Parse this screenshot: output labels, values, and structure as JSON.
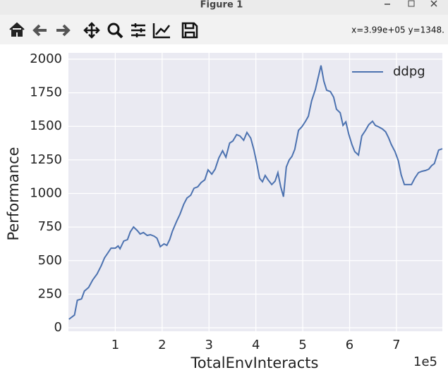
{
  "window": {
    "title": "Figure 1"
  },
  "status": "x=3.99e+05 y=1348.",
  "chart_data": {
    "type": "line",
    "xlabel": "TotalEnvInteracts",
    "ylabel": "Performance",
    "x_offset_label": "1e5",
    "x": [
      1000,
      13000,
      19000,
      28000,
      34000,
      43000,
      52000,
      61000,
      70000,
      77000,
      85000,
      91000,
      100000,
      106000,
      110000,
      118000,
      126000,
      132000,
      139000,
      147000,
      153000,
      160000,
      168000,
      175000,
      183000,
      189000,
      196000,
      204000,
      210000,
      216000,
      222000,
      231000,
      238000,
      246000,
      253000,
      261000,
      268000,
      276000,
      283000,
      291000,
      298000,
      306000,
      313000,
      321000,
      329000,
      336000,
      344000,
      351000,
      359000,
      366000,
      374000,
      381000,
      389000,
      396000,
      402000,
      408000,
      414000,
      420000,
      426000,
      434000,
      441000,
      447000,
      453000,
      459000,
      465000,
      471000,
      477000,
      483000,
      491000,
      498000,
      506000,
      512000,
      519000,
      527000,
      533000,
      539000,
      545000,
      551000,
      559000,
      566000,
      572000,
      580000,
      586000,
      592000,
      598000,
      605000,
      611000,
      619000,
      626000,
      634000,
      641000,
      649000,
      655000,
      662000,
      670000,
      677000,
      683000,
      689000,
      697000,
      704000,
      710000,
      717000,
      724000,
      732000,
      739000,
      747000,
      754000,
      762000,
      769000,
      775000,
      781000,
      790000,
      798000
    ],
    "series": [
      {
        "name": "ddpg",
        "color": "#4c72b0",
        "values": [
          63,
          95,
          205,
          215,
          273,
          300,
          357,
          400,
          462,
          520,
          562,
          593,
          593,
          609,
          588,
          646,
          656,
          714,
          750,
          724,
          698,
          709,
          688,
          693,
          682,
          667,
          604,
          625,
          614,
          656,
          719,
          793,
          845,
          919,
          966,
          987,
          1039,
          1050,
          1081,
          1102,
          1176,
          1144,
          1181,
          1265,
          1318,
          1270,
          1375,
          1391,
          1438,
          1428,
          1396,
          1454,
          1412,
          1323,
          1223,
          1113,
          1087,
          1134,
          1102,
          1066,
          1092,
          1155,
          1050,
          976,
          1197,
          1249,
          1276,
          1328,
          1470,
          1496,
          1538,
          1575,
          1690,
          1774,
          1864,
          1953,
          1837,
          1769,
          1759,
          1717,
          1627,
          1601,
          1507,
          1533,
          1444,
          1365,
          1312,
          1286,
          1428,
          1470,
          1512,
          1538,
          1507,
          1496,
          1480,
          1459,
          1417,
          1365,
          1312,
          1244,
          1139,
          1066,
          1066,
          1066,
          1113,
          1155,
          1165,
          1171,
          1181,
          1207,
          1223,
          1323,
          1333
        ]
      }
    ],
    "xlim": [
      0,
      798000
    ],
    "ylim": [
      -26,
      2047
    ],
    "xticks": [
      {
        "value": 100000,
        "label": "1"
      },
      {
        "value": 200000,
        "label": "2"
      },
      {
        "value": 300000,
        "label": "3"
      },
      {
        "value": 400000,
        "label": "4"
      },
      {
        "value": 500000,
        "label": "5"
      },
      {
        "value": 600000,
        "label": "6"
      },
      {
        "value": 700000,
        "label": "7"
      }
    ],
    "yticks": [
      0,
      250,
      500,
      750,
      1000,
      1250,
      1500,
      1750,
      2000
    ],
    "grid": true,
    "legend": "upper right",
    "background": "#eaeaf2"
  }
}
